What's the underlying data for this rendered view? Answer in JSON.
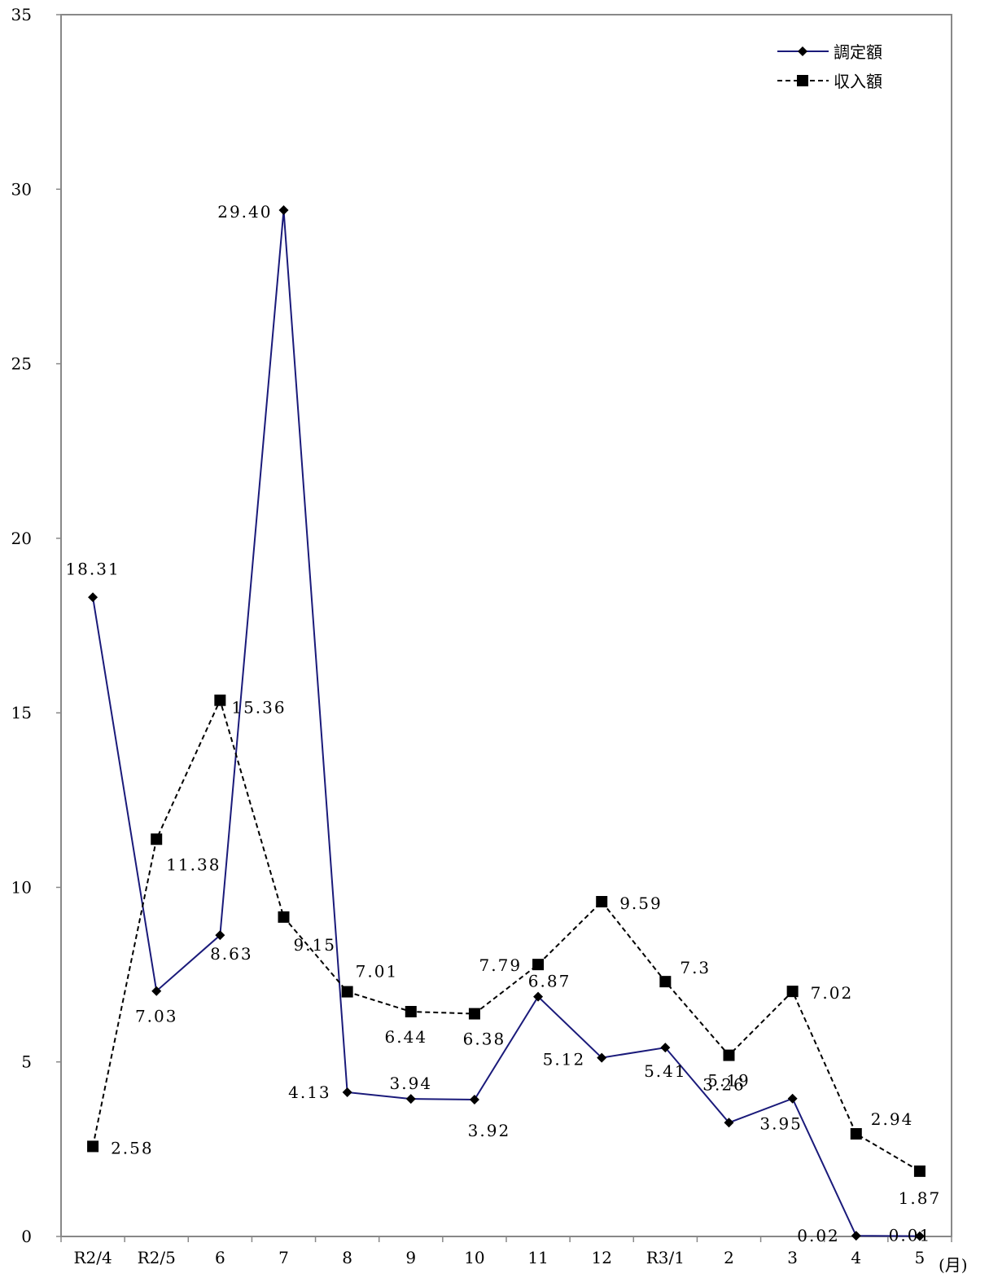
{
  "chart_data": {
    "type": "line",
    "categories": [
      "R2/4",
      "R2/5",
      "6",
      "7",
      "8",
      "9",
      "10",
      "11",
      "12",
      "R3/1",
      "2",
      "3",
      "4",
      "5"
    ],
    "x_unit": "(月)",
    "ylim": [
      0,
      35
    ],
    "yticks": [
      0,
      5,
      10,
      15,
      20,
      25,
      30,
      35
    ],
    "grid": false,
    "legend_position": "top-right",
    "series": [
      {
        "name": "調定額",
        "color": "#1a1a7a",
        "line": "solid",
        "marker": "diamond",
        "values": [
          18.31,
          7.03,
          8.63,
          29.4,
          4.13,
          3.94,
          3.92,
          6.87,
          5.12,
          5.41,
          3.26,
          3.95,
          0.02,
          0.01
        ],
        "labels": [
          "18.31",
          "7.03",
          "8.63",
          "29.40",
          "4.13",
          "3.94",
          "3.92",
          "6.87",
          "5.12",
          "5.41",
          "3.26",
          "3.95",
          "0.02",
          "0.01"
        ]
      },
      {
        "name": "収入額",
        "color": "#000000",
        "line": "dashed",
        "marker": "square",
        "values": [
          2.58,
          11.38,
          15.36,
          9.15,
          7.01,
          6.44,
          6.38,
          7.79,
          9.59,
          7.3,
          5.19,
          7.02,
          2.94,
          1.87
        ],
        "labels": [
          "2.58",
          "11.38",
          "15.36",
          "9.15",
          "7.01",
          "6.44",
          "6.38",
          "7.79",
          "9.59",
          "7.3",
          "5.19",
          "7.02",
          "2.94",
          "1.87"
        ]
      }
    ]
  }
}
